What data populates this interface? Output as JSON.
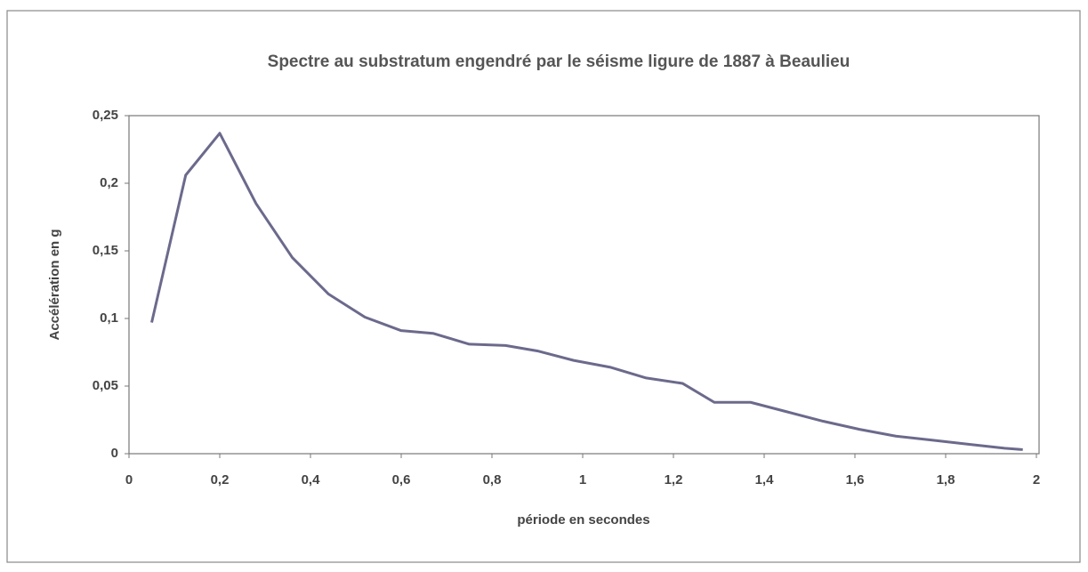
{
  "chart_data": {
    "type": "line",
    "title": "Spectre au substratum engendré par le séisme ligure de 1887 à Beaulieu",
    "x_label": "période en secondes",
    "y_label": "Accélération en g",
    "x": [
      0.05,
      0.125,
      0.2,
      0.28,
      0.36,
      0.44,
      0.52,
      0.6,
      0.67,
      0.75,
      0.83,
      0.9,
      0.98,
      1.06,
      1.14,
      1.22,
      1.29,
      1.37,
      1.45,
      1.53,
      1.61,
      1.69,
      1.77,
      1.85,
      1.93,
      1.97
    ],
    "series": [
      {
        "color": "#6b6a8c",
        "values": [
          0.097,
          0.206,
          0.237,
          0.185,
          0.145,
          0.118,
          0.101,
          0.091,
          0.089,
          0.081,
          0.08,
          0.076,
          0.069,
          0.064,
          0.056,
          0.052,
          0.038,
          0.038,
          0.031,
          0.024,
          0.018,
          0.013,
          0.01,
          0.007,
          0.004,
          0.003
        ]
      }
    ],
    "xlim": [
      0,
      2
    ],
    "xticks": [
      0,
      {
        "value": 0.2,
        "label": "0,2"
      },
      {
        "value": 0.4,
        "label": "0,4"
      },
      {
        "value": 0.6,
        "label": "0,6"
      },
      {
        "value": 0.8,
        "label": "0,8"
      },
      1,
      {
        "value": 1.2,
        "label": "1,2"
      },
      {
        "value": 1.4,
        "label": "1,4"
      },
      {
        "value": 1.6,
        "label": "1,6"
      },
      {
        "value": 1.8,
        "label": "1,8"
      },
      2
    ],
    "ylim": [
      0,
      0.25
    ],
    "yticks": [
      0,
      {
        "value": 0.05,
        "label": "0,05"
      },
      {
        "value": 0.1,
        "label": "0,1"
      },
      {
        "value": 0.15,
        "label": "0,15"
      },
      {
        "value": 0.2,
        "label": "0,2"
      },
      {
        "value": 0.25,
        "label": "0,25"
      }
    ],
    "grid": false
  }
}
